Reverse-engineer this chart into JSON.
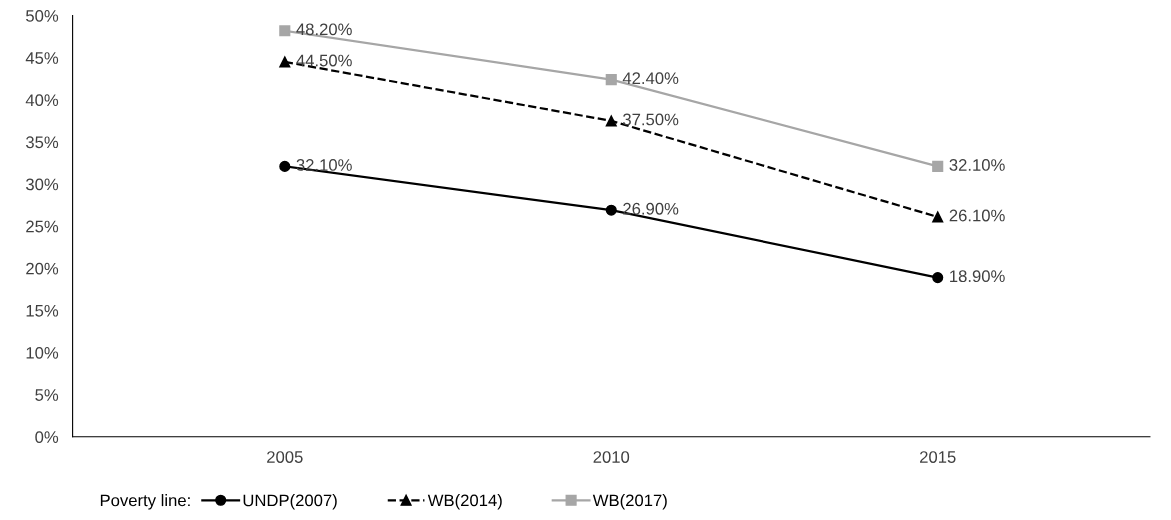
{
  "chart_data": {
    "type": "line",
    "categories": [
      "2005",
      "2010",
      "2015"
    ],
    "series": [
      {
        "name": "UNDP(2007)",
        "color": "#000000",
        "marker": "circle",
        "line_style": "solid",
        "values": [
          32.1,
          26.9,
          18.9
        ],
        "value_labels": [
          "32.10%",
          "26.90%",
          "18.90%"
        ]
      },
      {
        "name": "WB(2014)",
        "color": "#000000",
        "marker": "triangle",
        "line_style": "dashed",
        "values": [
          44.5,
          37.5,
          26.1
        ],
        "value_labels": [
          "44.50%",
          "37.50%",
          "26.10%"
        ]
      },
      {
        "name": "WB(2017)",
        "color": "#a6a6a6",
        "marker": "square",
        "line_style": "solid",
        "values": [
          48.2,
          42.4,
          32.1
        ],
        "value_labels": [
          "48.20%",
          "42.40%",
          "32.10%"
        ]
      }
    ],
    "ylim": [
      0,
      50
    ],
    "yticks": [
      {
        "value": 0,
        "label": "0%"
      },
      {
        "value": 5,
        "label": "5%"
      },
      {
        "value": 10,
        "label": "10%"
      },
      {
        "value": 15,
        "label": "15%"
      },
      {
        "value": 20,
        "label": "20%"
      },
      {
        "value": 25,
        "label": "25%"
      },
      {
        "value": 30,
        "label": "30%"
      },
      {
        "value": 35,
        "label": "35%"
      },
      {
        "value": 40,
        "label": "40%"
      },
      {
        "value": 45,
        "label": "45%"
      },
      {
        "value": 50,
        "label": "50%"
      }
    ],
    "grid": false,
    "legend": "bottom",
    "legend_title": "Poverty line:"
  }
}
